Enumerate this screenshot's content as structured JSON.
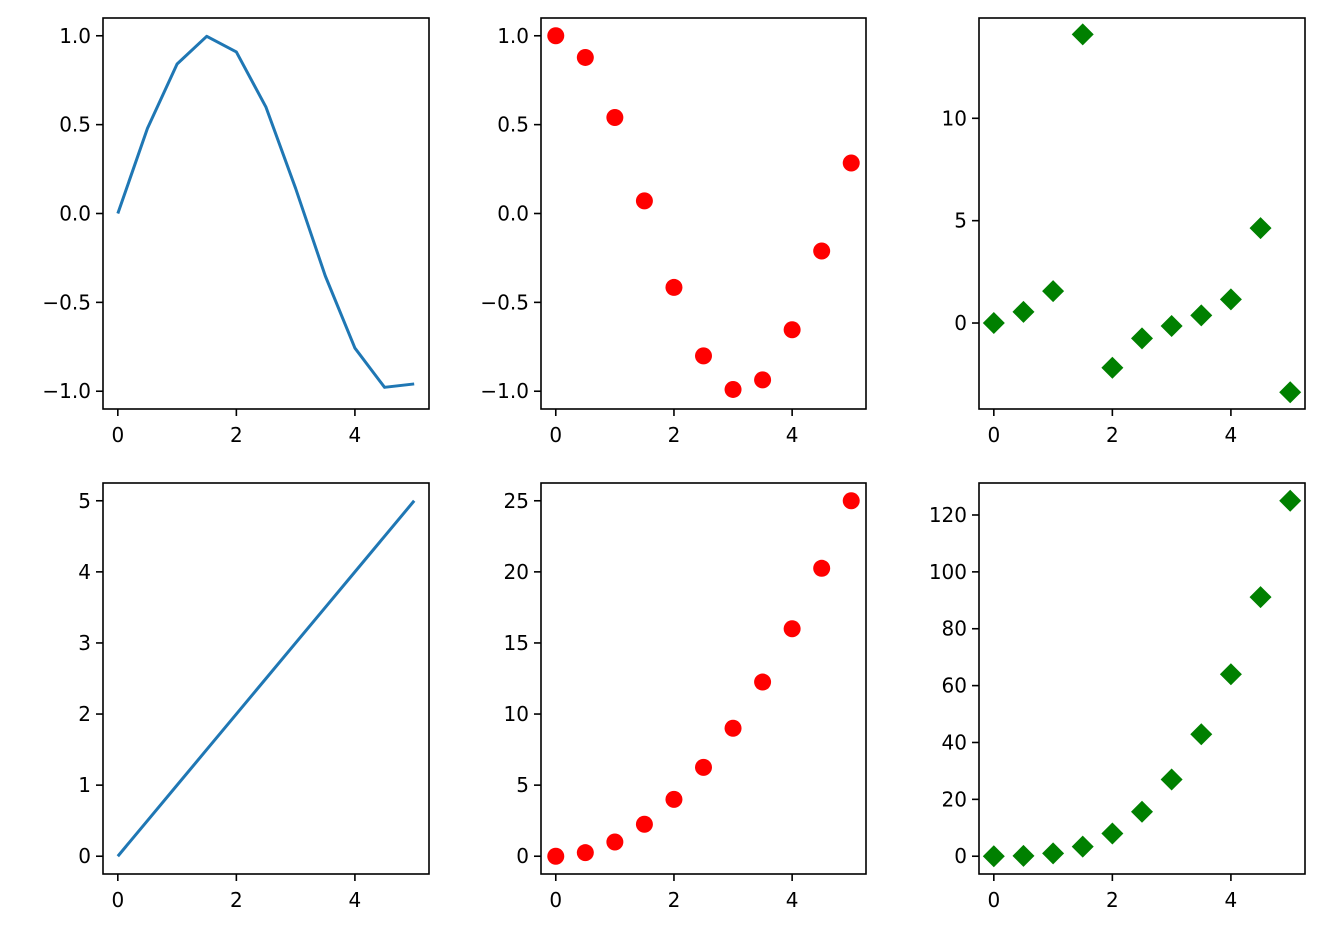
{
  "chart_data": [
    {
      "type": "line",
      "marker": "none",
      "color": "#1f77b4",
      "x": [
        0,
        0.5,
        1,
        1.5,
        2,
        2.5,
        3,
        3.5,
        4,
        4.5,
        5
      ],
      "y": [
        0,
        0.479,
        0.841,
        0.997,
        0.909,
        0.598,
        0.141,
        -0.351,
        -0.757,
        -0.978,
        -0.959
      ],
      "xlim": [
        -0.25,
        5.25
      ],
      "ylim": [
        -1.1,
        1.1
      ],
      "xticks": [
        0,
        2,
        4
      ],
      "yticks": [
        -1.0,
        -0.5,
        0.0,
        0.5,
        1.0
      ],
      "xticklabels": [
        "0",
        "2",
        "4"
      ],
      "yticklabels": [
        "−1.0",
        "−0.5",
        "0.0",
        "0.5",
        "1.0"
      ],
      "title": "",
      "xlabel": "",
      "ylabel": ""
    },
    {
      "type": "scatter",
      "marker": "circle",
      "color": "#ff0000",
      "x": [
        0,
        0.5,
        1,
        1.5,
        2,
        2.5,
        3,
        3.5,
        4,
        4.5,
        5
      ],
      "y": [
        1.0,
        0.878,
        0.54,
        0.071,
        -0.416,
        -0.801,
        -0.99,
        -0.936,
        -0.654,
        -0.211,
        0.284
      ],
      "xlim": [
        -0.25,
        5.25
      ],
      "ylim": [
        -1.1,
        1.1
      ],
      "xticks": [
        0,
        2,
        4
      ],
      "yticks": [
        -1.0,
        -0.5,
        0.0,
        0.5,
        1.0
      ],
      "xticklabels": [
        "0",
        "2",
        "4"
      ],
      "yticklabels": [
        "−1.0",
        "−0.5",
        "0.0",
        "0.5",
        "1.0"
      ],
      "title": "",
      "xlabel": "",
      "ylabel": ""
    },
    {
      "type": "scatter",
      "marker": "diamond",
      "color": "#008000",
      "x": [
        0,
        0.5,
        1,
        1.5,
        2,
        2.5,
        3,
        3.5,
        4,
        4.5,
        5
      ],
      "y": [
        0,
        0.546,
        1.557,
        14.1,
        -2.185,
        -0.747,
        -0.143,
        0.375,
        1.158,
        4.637,
        -3.381
      ],
      "xlim": [
        -0.25,
        5.25
      ],
      "ylim": [
        -4.2,
        14.9
      ],
      "xticks": [
        0,
        2,
        4
      ],
      "yticks": [
        0,
        5,
        10
      ],
      "xticklabels": [
        "0",
        "2",
        "4"
      ],
      "yticklabels": [
        "0",
        "5",
        "10"
      ],
      "title": "",
      "xlabel": "",
      "ylabel": ""
    },
    {
      "type": "line",
      "marker": "none",
      "color": "#1f77b4",
      "x": [
        0,
        0.5,
        1,
        1.5,
        2,
        2.5,
        3,
        3.5,
        4,
        4.5,
        5
      ],
      "y": [
        0,
        0.5,
        1,
        1.5,
        2,
        2.5,
        3,
        3.5,
        4,
        4.5,
        5
      ],
      "xlim": [
        -0.25,
        5.25
      ],
      "ylim": [
        -0.25,
        5.25
      ],
      "xticks": [
        0,
        2,
        4
      ],
      "yticks": [
        0,
        1,
        2,
        3,
        4,
        5
      ],
      "xticklabels": [
        "0",
        "2",
        "4"
      ],
      "yticklabels": [
        "0",
        "1",
        "2",
        "3",
        "4",
        "5"
      ],
      "title": "",
      "xlabel": "",
      "ylabel": ""
    },
    {
      "type": "scatter",
      "marker": "circle",
      "color": "#ff0000",
      "x": [
        0,
        0.5,
        1,
        1.5,
        2,
        2.5,
        3,
        3.5,
        4,
        4.5,
        5
      ],
      "y": [
        0,
        0.25,
        1,
        2.25,
        4,
        6.25,
        9,
        12.25,
        16,
        20.25,
        25
      ],
      "xlim": [
        -0.25,
        5.25
      ],
      "ylim": [
        -1.25,
        26.25
      ],
      "xticks": [
        0,
        2,
        4
      ],
      "yticks": [
        0,
        5,
        10,
        15,
        20,
        25
      ],
      "xticklabels": [
        "0",
        "2",
        "4"
      ],
      "yticklabels": [
        "0",
        "5",
        "10",
        "15",
        "20",
        "25"
      ],
      "title": "",
      "xlabel": "",
      "ylabel": ""
    },
    {
      "type": "scatter",
      "marker": "diamond",
      "color": "#008000",
      "x": [
        0,
        0.5,
        1,
        1.5,
        2,
        2.5,
        3,
        3.5,
        4,
        4.5,
        5
      ],
      "y": [
        0,
        0.125,
        1,
        3.375,
        8,
        15.625,
        27,
        42.875,
        64,
        91.125,
        125
      ],
      "xlim": [
        -0.25,
        5.25
      ],
      "ylim": [
        -6.25,
        131.25
      ],
      "xticks": [
        0,
        2,
        4
      ],
      "yticks": [
        0,
        20,
        40,
        60,
        80,
        100,
        120
      ],
      "xticklabels": [
        "0",
        "2",
        "4"
      ],
      "yticklabels": [
        "0",
        "20",
        "40",
        "60",
        "80",
        "100",
        "120"
      ],
      "title": "",
      "xlabel": "",
      "ylabel": ""
    }
  ]
}
